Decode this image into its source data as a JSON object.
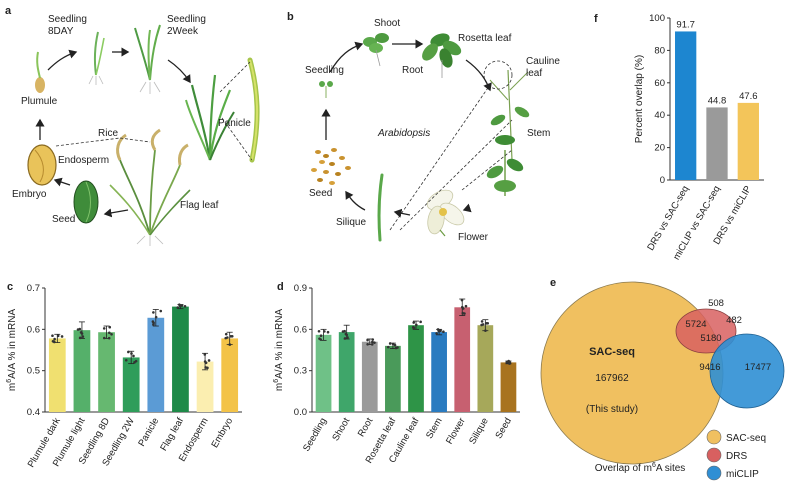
{
  "panel_a": {
    "letter": "a",
    "labels": {
      "seedling_8day": "Seedling\n8DAY",
      "seedling_2week": "Seedling\n2Week",
      "plumule": "Plumule",
      "panicle": "Panicle",
      "rice": "Rice",
      "endosperm": "Endosperm",
      "embryo": "Embryo",
      "seed": "Seed",
      "flag_leaf": "Flag leaf"
    }
  },
  "panel_b": {
    "letter": "b",
    "labels": {
      "shoot": "Shoot",
      "rosetta_leaf": "Rosetta leaf",
      "seedling": "Seedling",
      "root": "Root",
      "cauline_leaf": "Cauline\nleaf",
      "arabidopsis": "Arabidopsis",
      "stem": "Stem",
      "seed": "Seed",
      "silique": "Silique",
      "flower": "Flower"
    }
  },
  "colors": {
    "drs": "#d86060",
    "mi": "#2f8fd4",
    "sac": "#f0c060",
    "gray": "#9a9a9a",
    "f_blue": "#1d86d0",
    "f_yellow": "#f3c55a"
  },
  "chart_data": [
    {
      "panel": "c",
      "type": "bar",
      "ylabel": "m6A/A % in mRNA",
      "ylim": [
        0.4,
        0.7
      ],
      "yticks": [
        0.4,
        0.5,
        0.6,
        0.7
      ],
      "categories": [
        "Plumule dark",
        "Plumule light",
        "Seedling 8D",
        "Seedling 2W",
        "Panicle",
        "Flag leaf",
        "Endosperm",
        "Embryo"
      ],
      "values": [
        0.578,
        0.598,
        0.593,
        0.532,
        0.628,
        0.655,
        0.522,
        0.578
      ],
      "errors": [
        0.01,
        0.02,
        0.015,
        0.015,
        0.02,
        0.005,
        0.02,
        0.015
      ],
      "colors": [
        "#f0e070",
        "#55b06a",
        "#66b870",
        "#2f9d5a",
        "#5b9bd5",
        "#1e8a48",
        "#fbeeb0",
        "#f3c348"
      ]
    },
    {
      "panel": "d",
      "type": "bar",
      "ylabel": "m6A/A % in mRNA",
      "ylim": [
        0.0,
        0.9
      ],
      "yticks": [
        0.0,
        0.3,
        0.6,
        0.9
      ],
      "categories": [
        "Seedling",
        "Shoot",
        "Root",
        "Rosetta leaf",
        "Cauline leaf",
        "Stem",
        "Flower",
        "Silique",
        "Seed"
      ],
      "values": [
        0.56,
        0.58,
        0.51,
        0.48,
        0.63,
        0.58,
        0.76,
        0.63,
        0.36
      ],
      "errors": [
        0.04,
        0.05,
        0.02,
        0.02,
        0.03,
        0.02,
        0.06,
        0.04,
        0.01
      ],
      "colors": [
        "#6fc187",
        "#3fa66a",
        "#9a9a9a",
        "#4a9a5a",
        "#2e9447",
        "#2a7bc0",
        "#c76070",
        "#a6a85a",
        "#a8731f"
      ]
    },
    {
      "panel": "f",
      "type": "bar",
      "ylabel": "Percent overlap (%)",
      "ylim": [
        0,
        100
      ],
      "yticks": [
        0,
        20,
        40,
        60,
        80,
        100
      ],
      "categories": [
        "DRS vs SAC-seq",
        "miCLIP vs SAC-seq",
        "DRS vs miCLIP"
      ],
      "values": [
        91.7,
        44.8,
        47.6
      ],
      "value_labels": [
        "91.7",
        "44.8",
        "47.6"
      ],
      "colors": [
        "#1d86d0",
        "#9a9a9a",
        "#f3c55a"
      ]
    },
    {
      "panel": "e",
      "type": "venn",
      "caption": "Overlap of m6A sites",
      "sac_title": "SAC-seq",
      "sac_note": "(This study)",
      "regions": {
        "sac_only": "167962",
        "drs_only": "508",
        "sac_drs": "5724",
        "drs_mi": "482",
        "all_three": "5180",
        "sac_mi": "9416",
        "mi_only": "17477"
      },
      "legend": [
        "SAC-seq",
        "DRS",
        "miCLIP"
      ]
    }
  ],
  "panel_letters": {
    "c": "c",
    "d": "d",
    "e": "e",
    "f": "f"
  }
}
